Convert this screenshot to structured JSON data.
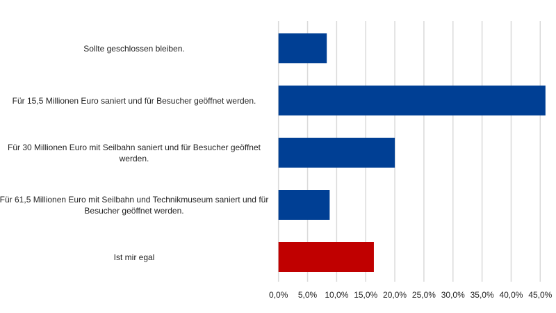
{
  "chart_data": {
    "type": "bar",
    "orientation": "horizontal",
    "title": "",
    "xlabel": "",
    "ylabel": "",
    "categories": [
      "Sollte geschlossen bleiben.",
      "Für 15,5 Millionen Euro saniert und für Besucher geöffnet werden.",
      "Für 30 Millionen Euro mit Seilbahn saniert und für Besucher geöffnet werden.",
      "Für 61,5 Millionen Euro mit Seilbahn und Technikmuseum saniert und für Besucher geöffnet werden.",
      "Ist mir egal"
    ],
    "values": [
      8.3,
      45.9,
      20.0,
      8.8,
      16.4
    ],
    "colors": [
      "#003f94",
      "#003f94",
      "#003f94",
      "#003f94",
      "#c00000"
    ],
    "xlim": [
      0,
      45
    ],
    "ticks": [
      "0,0%",
      "5,0%",
      "10,0%",
      "15,0%",
      "20,0%",
      "25,0%",
      "30,0%",
      "35,0%",
      "40,0%",
      "45,0%"
    ],
    "grid": true,
    "legend": "none"
  }
}
